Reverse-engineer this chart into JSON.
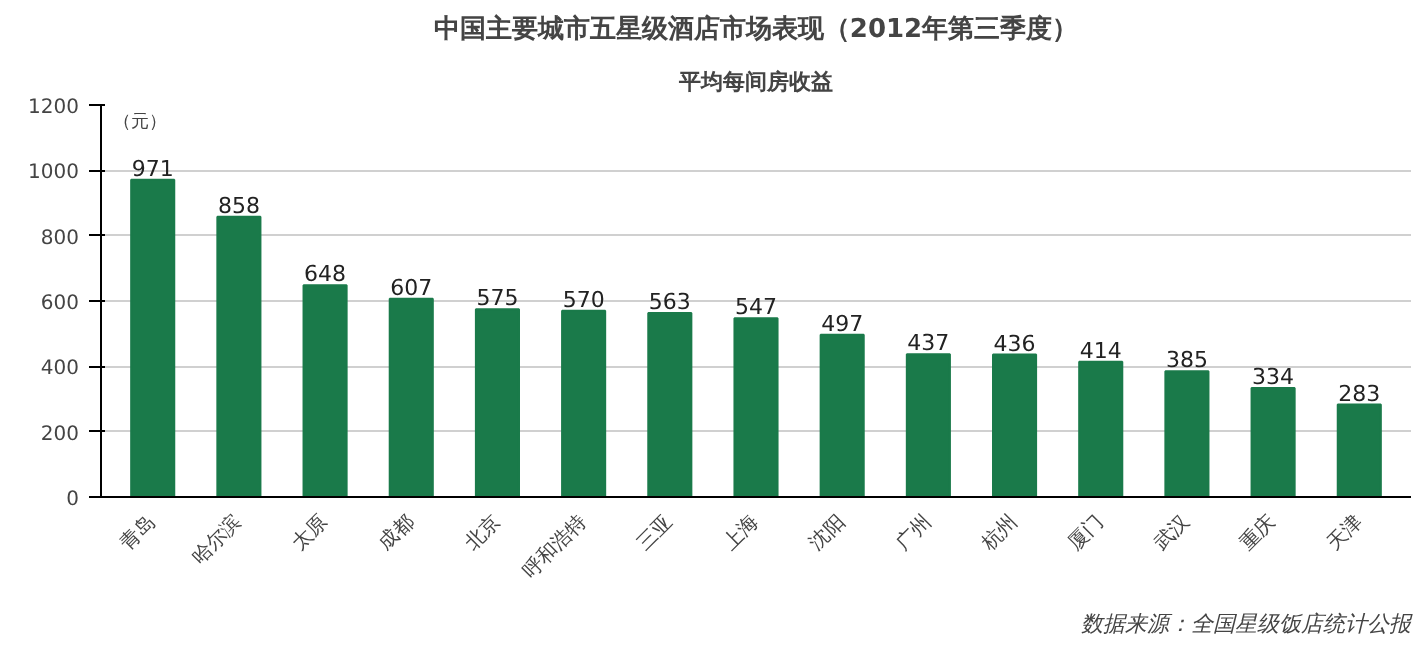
{
  "chart_data": {
    "type": "bar",
    "title": "中国主要城市五星级酒店市场表现（2012年第三季度）",
    "subtitle": "平均每间房收益",
    "ylabel": "（元）",
    "categories": [
      "青岛",
      "哈尔滨",
      "太原",
      "成都",
      "北京",
      "呼和浩特",
      "三亚",
      "上海",
      "沈阳",
      "广州",
      "杭州",
      "厦门",
      "武汉",
      "重庆",
      "天津"
    ],
    "values": [
      971,
      858,
      648,
      607,
      575,
      570,
      563,
      547,
      497,
      437,
      436,
      414,
      385,
      334,
      283
    ],
    "color": "#1a7a4a",
    "ylim": [
      0,
      1200
    ],
    "yticks": [
      0,
      200,
      400,
      600,
      800,
      1000,
      1200
    ],
    "grid": "y",
    "data_labels": true,
    "annotations": [
      "数据来源：全国星级饭店统计公报"
    ]
  }
}
